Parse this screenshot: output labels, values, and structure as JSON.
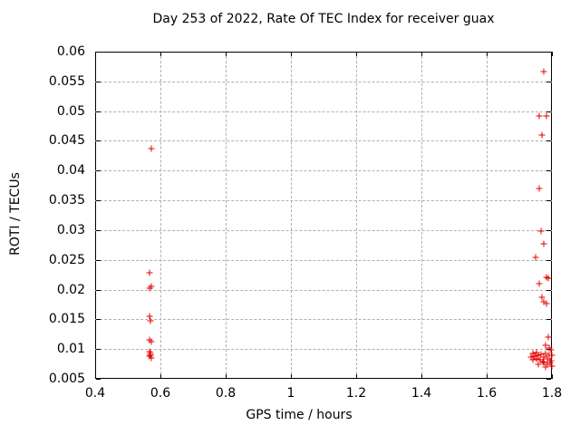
{
  "chart_data": {
    "type": "scatter",
    "title": "Day 253 of 2022, Rate Of TEC Index for receiver guax",
    "xlabel": "GPS time / hours",
    "ylabel": "ROTI / TECUs",
    "xlim": [
      0.4,
      1.8
    ],
    "ylim": [
      0.005,
      0.06
    ],
    "xticks": [
      0.4,
      0.6,
      0.8,
      1,
      1.2,
      1.4,
      1.6,
      1.8
    ],
    "xtick_labels": [
      "0.4",
      "0.6",
      "0.8",
      "1",
      "1.2",
      "1.4",
      "1.6",
      "1.8"
    ],
    "yticks": [
      0.005,
      0.01,
      0.015,
      0.02,
      0.025,
      0.03,
      0.035,
      0.04,
      0.045,
      0.05,
      0.055,
      0.06
    ],
    "ytick_labels": [
      "0.005",
      "0.01",
      "0.015",
      "0.02",
      "0.025",
      "0.03",
      "0.035",
      "0.04",
      "0.045",
      "0.05",
      "0.055",
      "0.06"
    ],
    "grid": true,
    "legend_position": "none",
    "colors": {
      "background": "#ffffff",
      "axis": "#000000",
      "grid": "#b0b0b0",
      "marker": "#e60000"
    },
    "marker": {
      "shape": "plus",
      "color": "#e60000",
      "size": 7
    },
    "series": [
      {
        "name": "ROTI",
        "points": [
          [
            0.571,
            0.0437
          ],
          [
            0.567,
            0.0228
          ],
          [
            0.567,
            0.0202
          ],
          [
            0.572,
            0.0205
          ],
          [
            0.567,
            0.0155
          ],
          [
            0.569,
            0.0147
          ],
          [
            0.567,
            0.0116
          ],
          [
            0.571,
            0.0113
          ],
          [
            0.567,
            0.0095
          ],
          [
            0.569,
            0.009
          ],
          [
            0.57,
            0.0092
          ],
          [
            0.567,
            0.0088
          ],
          [
            0.571,
            0.0085
          ],
          [
            1.775,
            0.0566
          ],
          [
            1.761,
            0.0492
          ],
          [
            1.783,
            0.0492
          ],
          [
            1.769,
            0.046
          ],
          [
            1.761,
            0.037
          ],
          [
            1.766,
            0.0298
          ],
          [
            1.774,
            0.0277
          ],
          [
            1.75,
            0.0254
          ],
          [
            1.783,
            0.0221
          ],
          [
            1.789,
            0.0219
          ],
          [
            1.761,
            0.021
          ],
          [
            1.769,
            0.0187
          ],
          [
            1.775,
            0.018
          ],
          [
            1.783,
            0.0177
          ],
          [
            1.789,
            0.012
          ],
          [
            1.781,
            0.0106
          ],
          [
            1.792,
            0.0102
          ],
          [
            1.736,
            0.0086
          ],
          [
            1.742,
            0.0093
          ],
          [
            1.742,
            0.0082
          ],
          [
            1.747,
            0.0088
          ],
          [
            1.753,
            0.0094
          ],
          [
            1.753,
            0.0083
          ],
          [
            1.758,
            0.0089
          ],
          [
            1.758,
            0.0075
          ],
          [
            1.764,
            0.0082
          ],
          [
            1.767,
            0.0091
          ],
          [
            1.772,
            0.0079
          ],
          [
            1.775,
            0.0086
          ],
          [
            1.775,
            0.0077
          ],
          [
            1.781,
            0.0093
          ],
          [
            1.781,
            0.007
          ],
          [
            1.786,
            0.0083
          ],
          [
            1.786,
            0.0074
          ],
          [
            1.792,
            0.0089
          ],
          [
            1.794,
            0.0078
          ],
          [
            1.797,
            0.0098
          ],
          [
            1.797,
            0.008
          ],
          [
            1.8,
            0.009
          ],
          [
            1.8,
            0.0072
          ]
        ]
      }
    ]
  }
}
